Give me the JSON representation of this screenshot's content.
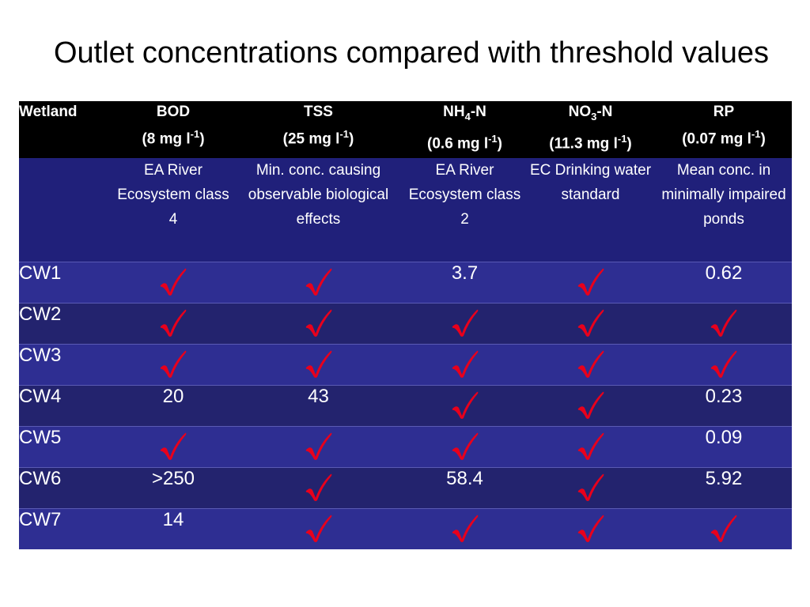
{
  "title": "Outlet concentrations compared with threshold values",
  "colors": {
    "header_bg": "#000000",
    "desc_bg": "#20207a",
    "row_light": "#2e2e92",
    "row_dark": "#23236e",
    "tick": "#e8001c"
  },
  "columns": [
    {
      "name": "Wetland"
    },
    {
      "name": "BOD",
      "threshold": "(8 mg l",
      "exp": "-1",
      "close": ")"
    },
    {
      "name": "TSS",
      "threshold": "(25 mg l",
      "exp": "-1",
      "close": ")"
    },
    {
      "name": "NH",
      "sub": "4",
      "name_suffix": "-N",
      "threshold": "(0.6 mg l",
      "exp": "-1",
      "close": ")"
    },
    {
      "name": "NO",
      "sub": "3",
      "name_suffix": "-N",
      "threshold": "(11.3 mg l",
      "exp": "-1",
      "close": ")"
    },
    {
      "name": "RP",
      "threshold": "(0.07 mg l",
      "exp": "-1",
      "close": ")"
    }
  ],
  "descriptions": [
    "",
    "EA River Ecosystem class 4",
    "Min. conc. causing observable biological effects",
    "EA River Ecosystem class 2",
    "EC Drinking water standard",
    "Mean conc. in minimally impaired ponds"
  ],
  "tick_icon": "red-checkmark-icon",
  "rows": [
    {
      "wetland": "CW1",
      "values": [
        "check",
        "check",
        "3.7",
        "check",
        "0.62"
      ]
    },
    {
      "wetland": "CW2",
      "values": [
        "check",
        "check",
        "check",
        "check",
        "check"
      ]
    },
    {
      "wetland": "CW3",
      "values": [
        "check",
        "check",
        "check",
        "check",
        "check"
      ]
    },
    {
      "wetland": "CW4",
      "values": [
        "20",
        "43",
        "check",
        "check",
        "0.23"
      ]
    },
    {
      "wetland": "CW5",
      "values": [
        "check",
        "check",
        "check",
        "check",
        "0.09"
      ]
    },
    {
      "wetland": "CW6",
      "values": [
        ">250",
        "check",
        "58.4",
        "check",
        "5.92"
      ]
    },
    {
      "wetland": "CW7",
      "values": [
        "14",
        "check",
        "check",
        "check",
        "check"
      ]
    }
  ]
}
